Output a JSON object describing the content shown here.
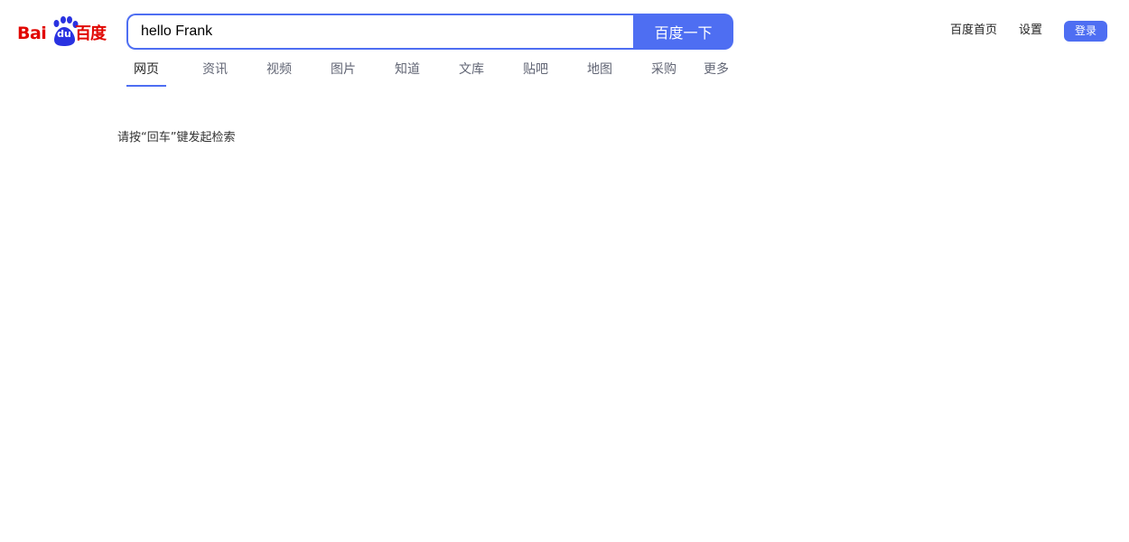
{
  "logo": {
    "latin_left": "Bai",
    "paw_text": "du",
    "chinese": "百度",
    "brand_red": "#e10601",
    "paw_blue": "#2932e1"
  },
  "search": {
    "value": "hello Frank",
    "placeholder": "",
    "button_label": "百度一下",
    "accent": "#4e6ef2"
  },
  "tabs": [
    {
      "label": "网页",
      "active": true
    },
    {
      "label": "资讯",
      "active": false
    },
    {
      "label": "视频",
      "active": false
    },
    {
      "label": "图片",
      "active": false
    },
    {
      "label": "知道",
      "active": false
    },
    {
      "label": "文库",
      "active": false
    },
    {
      "label": "贴吧",
      "active": false
    },
    {
      "label": "地图",
      "active": false
    },
    {
      "label": "采购",
      "active": false
    },
    {
      "label": "更多",
      "active": false
    }
  ],
  "top_nav": {
    "home_label": "百度首页",
    "settings_label": "设置",
    "login_label": "登录"
  },
  "hint": {
    "text": "请按“回车”键发起检索"
  }
}
